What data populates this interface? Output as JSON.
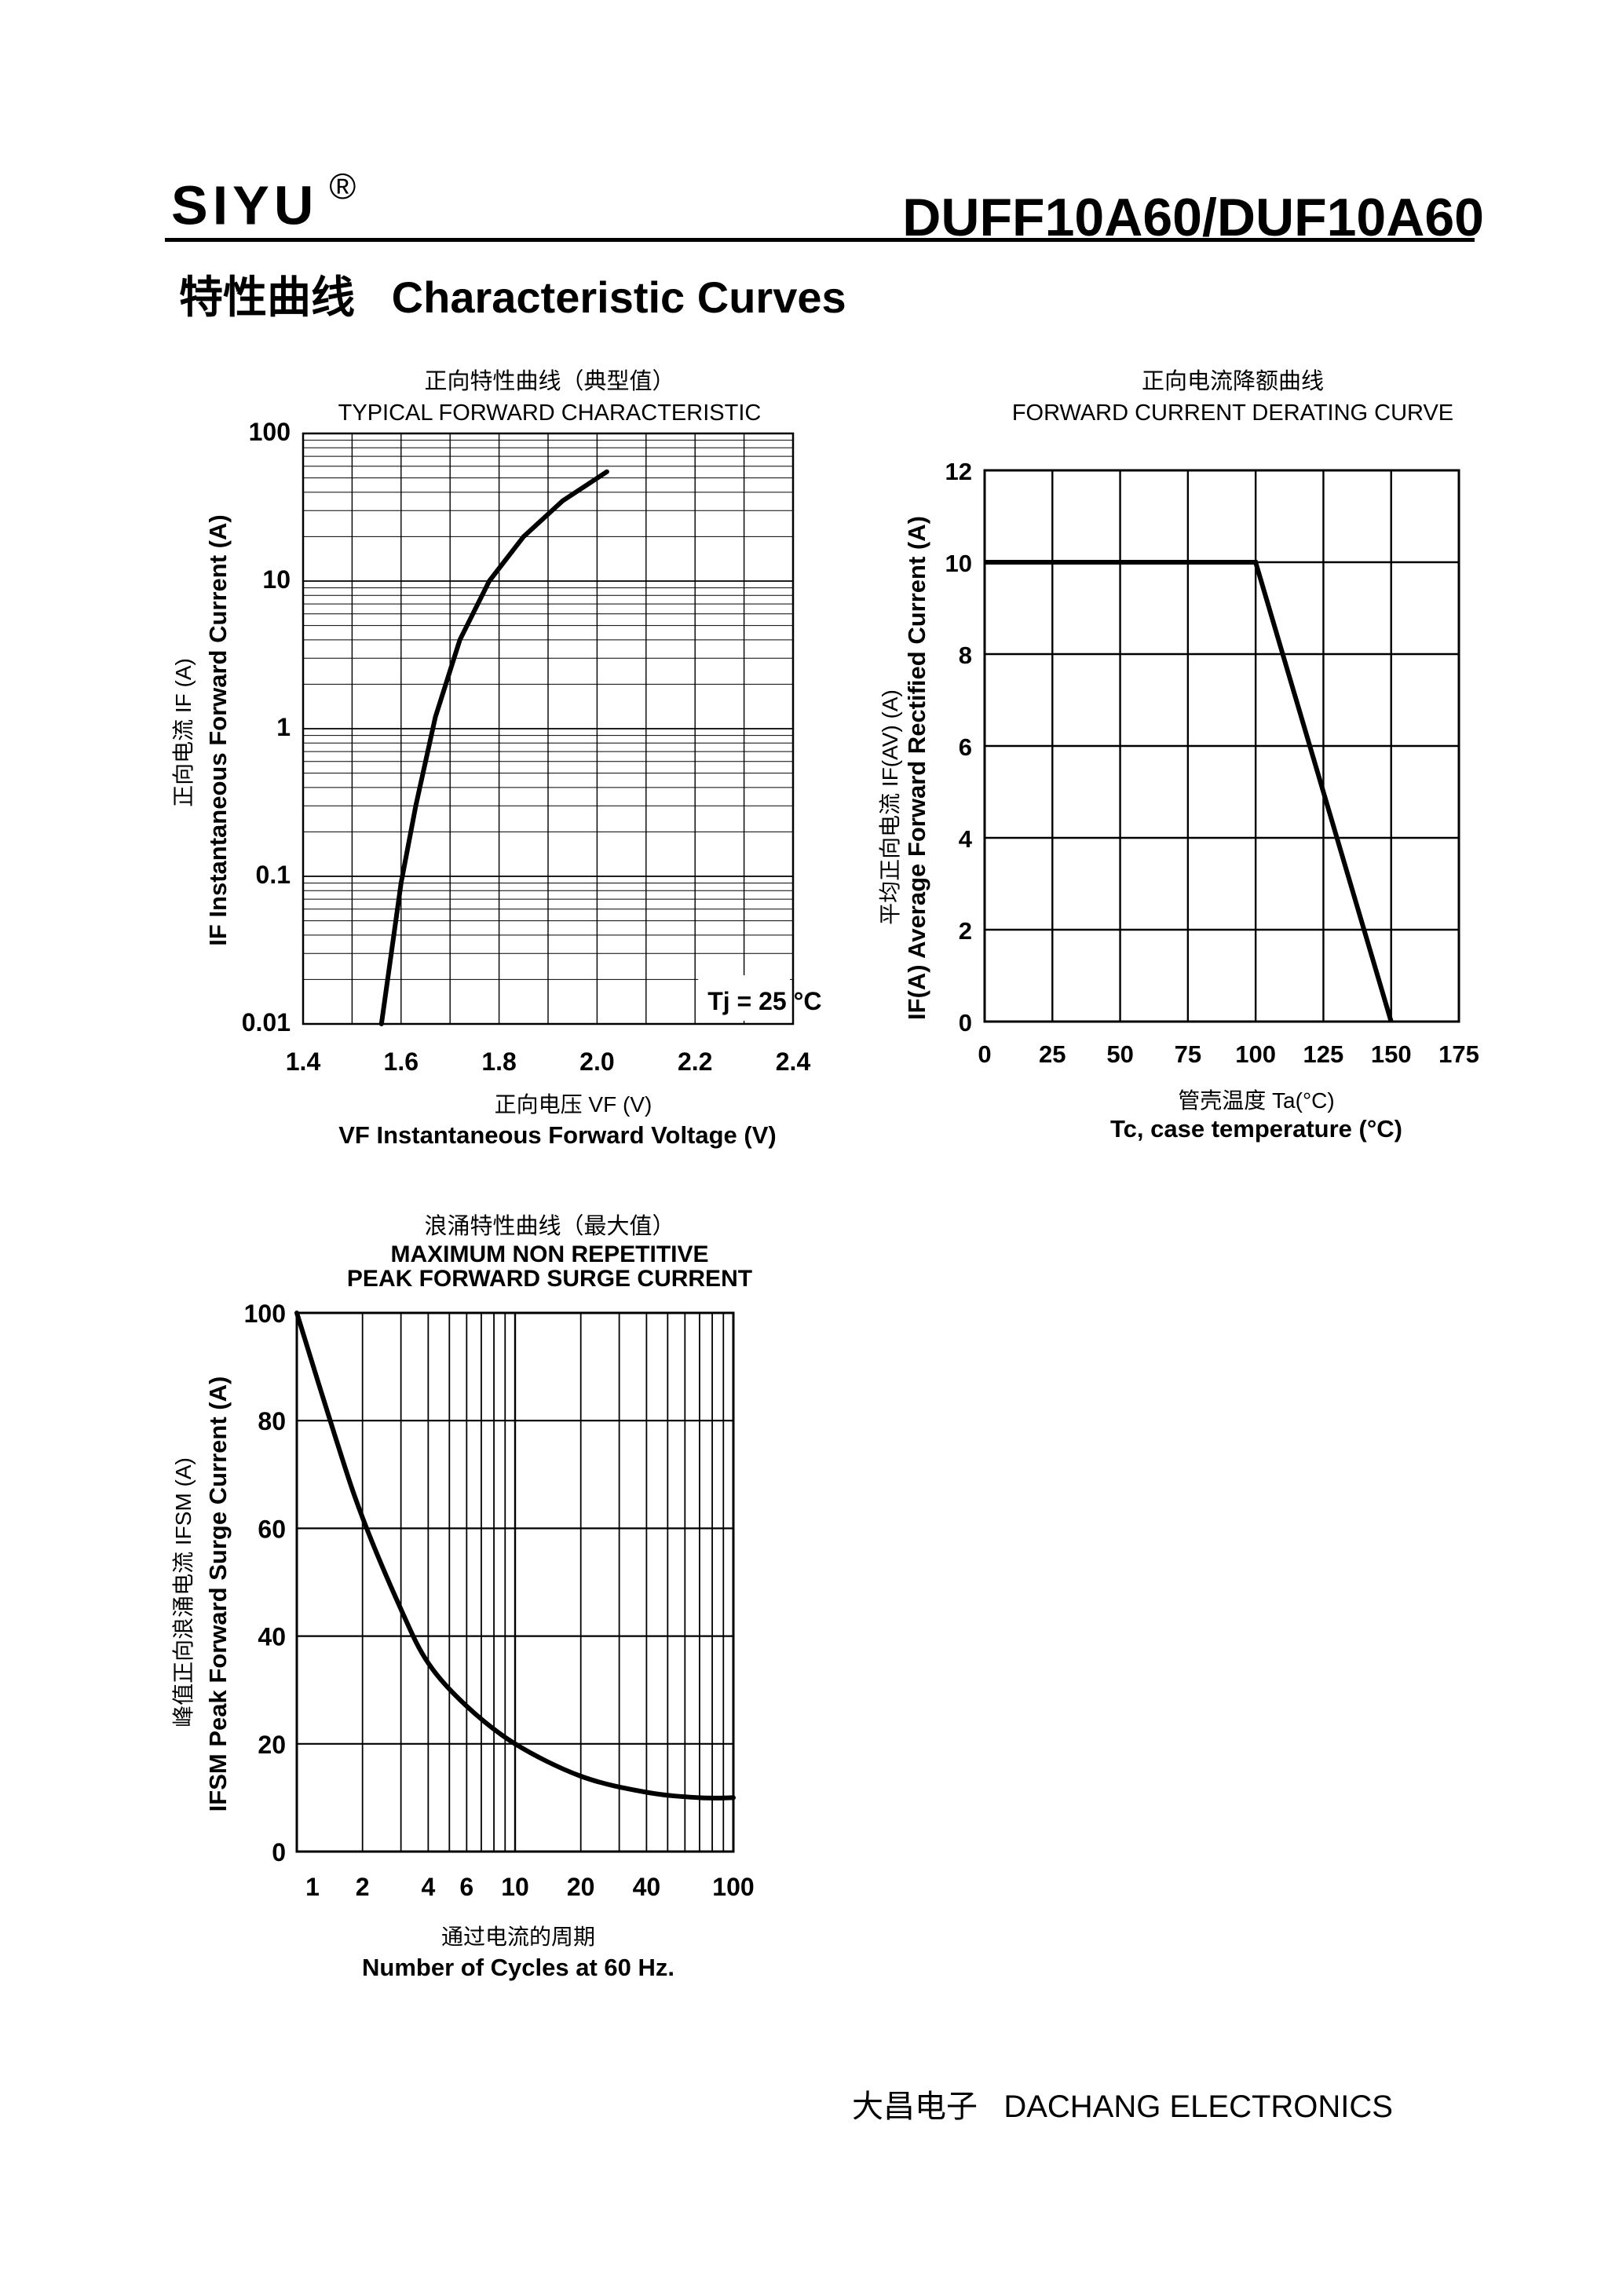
{
  "header": {
    "brand": "SIYU",
    "brand_mark": "®",
    "part_number": "DUFF10A60/DUF10A60"
  },
  "section_title": "特性曲线   Characteristic Curves",
  "chart_data": [
    {
      "type": "line",
      "title_cn": "正向特性曲线（典型值）",
      "title": "TYPICAL FORWARD CHARACTERISTIC",
      "xlabel": "VF Instantaneous Forward Voltage (V)",
      "xlabel_cn": "正向电压   VF (V)",
      "ylabel": "IF Instantaneous Forward Current (A)",
      "ylabel_cn": "正向电流   IF (A)",
      "xlim": [
        1.4,
        2.4
      ],
      "ylim": [
        0.01,
        100
      ],
      "yscale": "log",
      "x_ticks": [
        "1.4",
        "1.6",
        "1.8",
        "2.0",
        "2.2",
        "2.4"
      ],
      "y_ticks": [
        "0.01",
        "0.1",
        "1",
        "10",
        "100"
      ],
      "annotation": "Tj = 25 °C",
      "grid": true,
      "series": [
        {
          "x": [
            1.56,
            1.58,
            1.6,
            1.63,
            1.67,
            1.72,
            1.78,
            1.85,
            1.93,
            2.02
          ],
          "y": [
            0.01,
            0.03,
            0.09,
            0.3,
            1.2,
            4.0,
            10.0,
            20.0,
            35.0,
            55.0
          ]
        }
      ]
    },
    {
      "type": "line",
      "title_cn": "正向电流降额曲线",
      "title": "FORWARD CURRENT DERATING CURVE",
      "xlabel": "Tc, case  temperature (°C)",
      "xlabel_cn": "管壳温度  Ta(°C)",
      "ylabel": "IF(A) Average Forward Rectified Current (A)",
      "ylabel_cn": "平均正向电流   IF(AV) (A)",
      "xlim": [
        0,
        175
      ],
      "ylim": [
        0,
        12
      ],
      "x_ticks": [
        "0",
        "25",
        "50",
        "75",
        "100",
        "125",
        "150",
        "175"
      ],
      "y_ticks": [
        "0",
        "2",
        "4",
        "6",
        "8",
        "10",
        "12"
      ],
      "grid": true,
      "series": [
        {
          "x": [
            0,
            100,
            150
          ],
          "y": [
            10,
            10,
            0
          ]
        }
      ]
    },
    {
      "type": "line",
      "title_cn": "浪涌特性曲线（最大值）",
      "title": "MAXIMUM NON REPETITIVE\nPEAK FORWARD SURGE CURRENT",
      "xlabel": "Number  of  Cycles at 60 Hz.",
      "xlabel_cn": "通过电流的周期",
      "ylabel": "IFSM Peak Forward Surge Current (A)",
      "ylabel_cn": "峰值正向浪涌电流   IFSM (A)",
      "xlim": [
        1,
        100
      ],
      "xscale": "log",
      "ylim": [
        0,
        100
      ],
      "x_ticks": [
        "1",
        "2",
        "4",
        "6",
        "10",
        "20",
        "40",
        "100"
      ],
      "y_ticks": [
        "0",
        "20",
        "40",
        "60",
        "80",
        "100"
      ],
      "grid": true,
      "series": [
        {
          "x": [
            1,
            1.5,
            2,
            3,
            4,
            6,
            10,
            20,
            40,
            70,
            100
          ],
          "y": [
            100,
            77,
            62,
            45,
            35,
            27,
            20,
            14,
            11,
            10,
            10
          ]
        }
      ]
    }
  ],
  "footer": "大昌电子   DACHANG ELECTRONICS"
}
